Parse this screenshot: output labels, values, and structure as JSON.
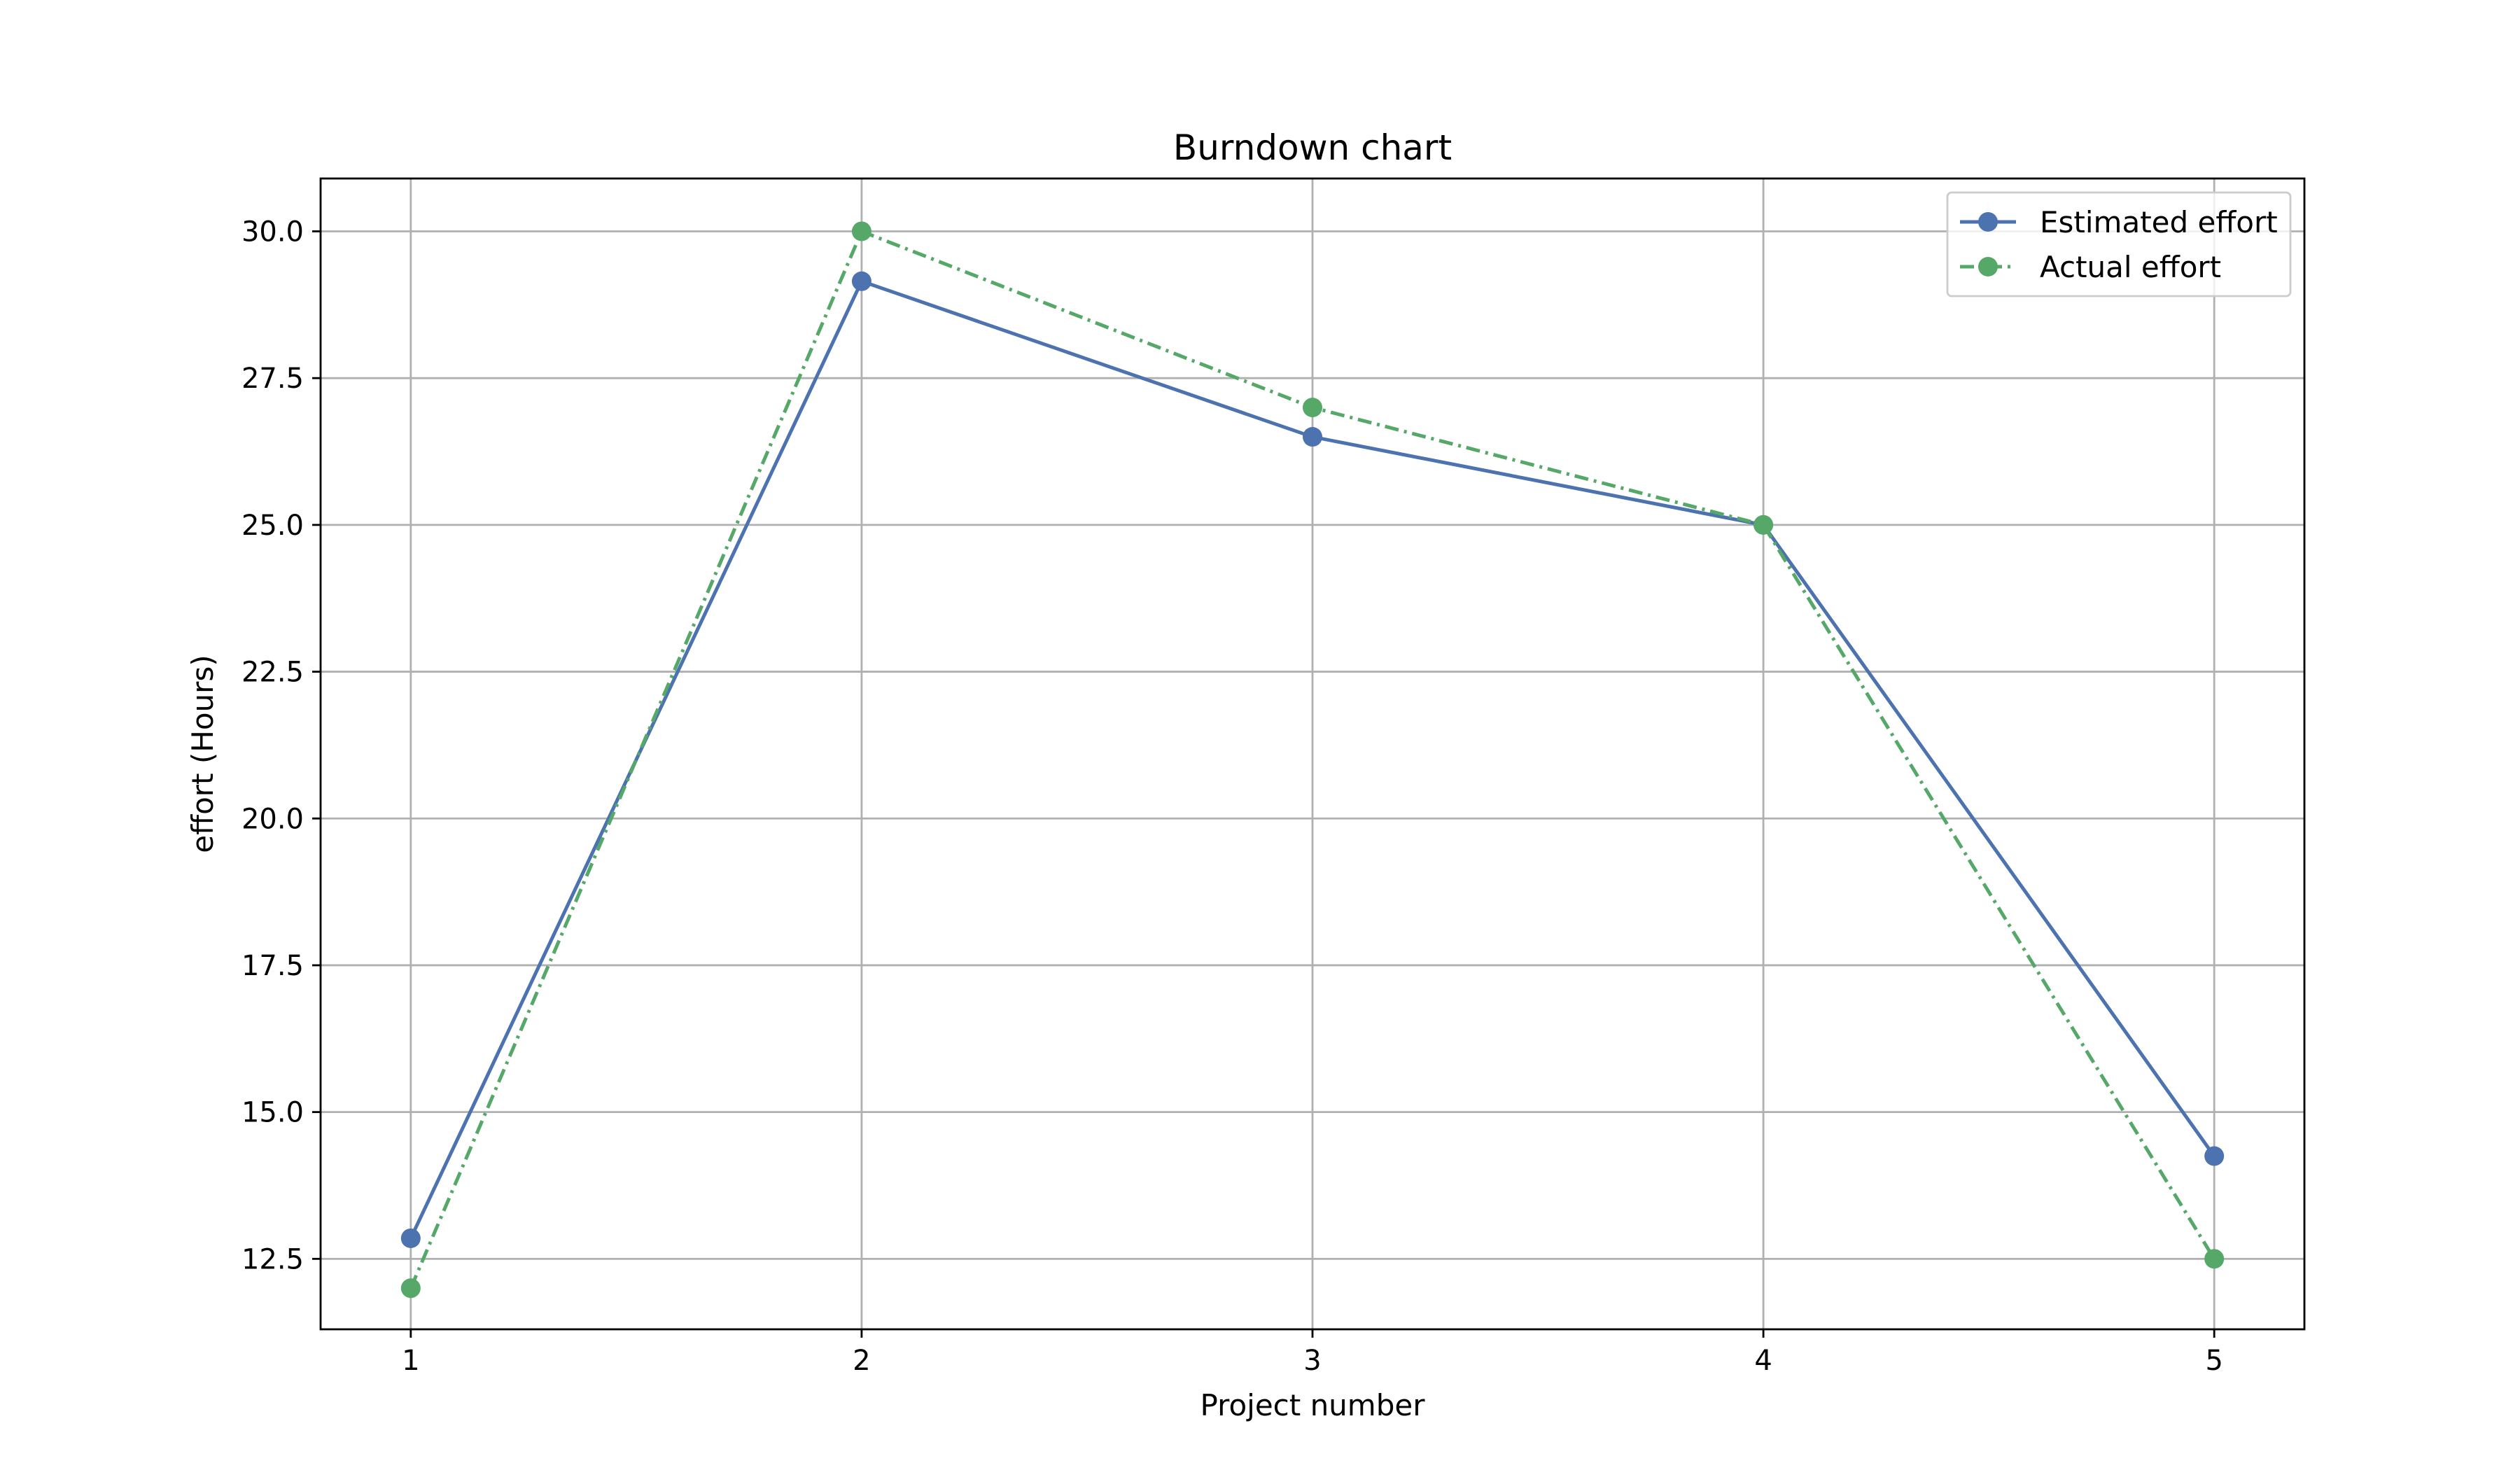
{
  "chart_data": {
    "type": "line",
    "title": "Burndown chart",
    "xlabel": "Project number",
    "ylabel": "effort (Hours)",
    "x": [
      1,
      2,
      3,
      4,
      5
    ],
    "xlim": [
      0.8,
      5.2
    ],
    "ylim": [
      11.3,
      30.9
    ],
    "xticks": [
      1,
      2,
      3,
      4,
      5
    ],
    "yticks": [
      12.5,
      15.0,
      17.5,
      20.0,
      22.5,
      25.0,
      27.5,
      30.0
    ],
    "ytick_labels": [
      "12.5",
      "15.0",
      "17.5",
      "20.0",
      "22.5",
      "25.0",
      "27.5",
      "30.0"
    ],
    "grid": true,
    "legend_position": "top-right",
    "series": [
      {
        "name": "Estimated effort",
        "values": [
          12.85,
          29.15,
          26.5,
          25.0,
          14.25
        ],
        "color": "#4c72b0",
        "linestyle": "solid",
        "marker": "circle"
      },
      {
        "name": "Actual effort",
        "values": [
          12.0,
          30.0,
          27.0,
          25.0,
          12.5
        ],
        "color": "#55a868",
        "linestyle": "dashdot",
        "marker": "circle"
      }
    ]
  }
}
